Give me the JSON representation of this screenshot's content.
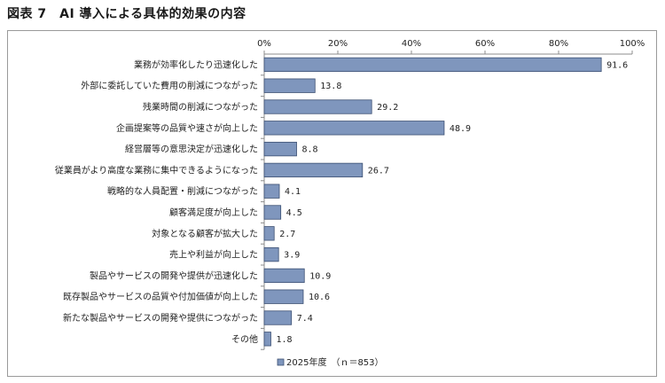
{
  "figure": {
    "title": "図表 7　AI 導入による具体的効果の内容"
  },
  "chart_data": {
    "type": "bar",
    "orientation": "horizontal",
    "categories": [
      "業務が効率化したり迅速化した",
      "外部に委託していた費用の削減につながった",
      "残業時間の削減につながった",
      "企画提案等の品質や速さが向上した",
      "経営層等の意思決定が迅速化した",
      "従業員がより高度な業務に集中できるようになった",
      "戦略的な人員配置・削減につながった",
      "顧客満足度が向上した",
      "対象となる顧客が拡大した",
      "売上や利益が向上した",
      "製品やサービスの開発や提供が迅速化した",
      "既存製品やサービスの品質や付加価値が向上した",
      "新たな製品やサービスの開発や提供につながった",
      "その他"
    ],
    "series": [
      {
        "name": "2025年度　（ｎ＝853）",
        "values": [
          91.6,
          13.8,
          29.2,
          48.9,
          8.8,
          26.7,
          4.1,
          4.5,
          2.7,
          3.9,
          10.9,
          10.6,
          7.4,
          1.8
        ],
        "value_labels": [
          "91.6",
          "13.8",
          "29.2",
          "48.9",
          "8.8",
          "26.7",
          "4.1",
          "4.5",
          "2.7",
          "3.9",
          "10.9",
          "10.6",
          "7.4",
          "1.8"
        ]
      }
    ],
    "xlim": [
      0,
      100
    ],
    "x_ticks": [
      0,
      20,
      40,
      60,
      80,
      100
    ],
    "x_tick_labels": [
      "0%",
      "20%",
      "40%",
      "60%",
      "80%",
      "100%"
    ],
    "grid": false,
    "legend_position": "bottom",
    "colors": {
      "bar_fill": "#7f96bd",
      "bar_stroke": "#3b4f72",
      "axis": "#8c8c8c"
    }
  }
}
